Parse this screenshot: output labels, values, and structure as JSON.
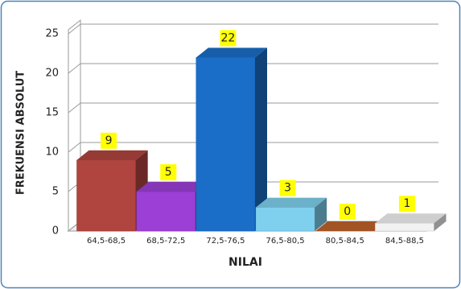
{
  "chart_data": {
    "type": "bar3d",
    "categories": [
      "64,5-68,5",
      "68,5-72,5",
      "72,5-76,5",
      "76,5-80,5",
      "80,5-84,5",
      "84,5-88,5"
    ],
    "values": [
      9,
      5,
      22,
      3,
      0,
      1
    ],
    "colors": [
      "#b0443f",
      "#9b3fd6",
      "#1a6ec8",
      "#7fd0ee",
      "#c0632a",
      "#f2f2f2"
    ],
    "xlabel": "NILAI",
    "ylabel": "FREKUENSI ABSOLUT",
    "ylim": [
      0,
      25
    ],
    "yticks": [
      0,
      5,
      10,
      15,
      20,
      25
    ],
    "grid": true
  }
}
